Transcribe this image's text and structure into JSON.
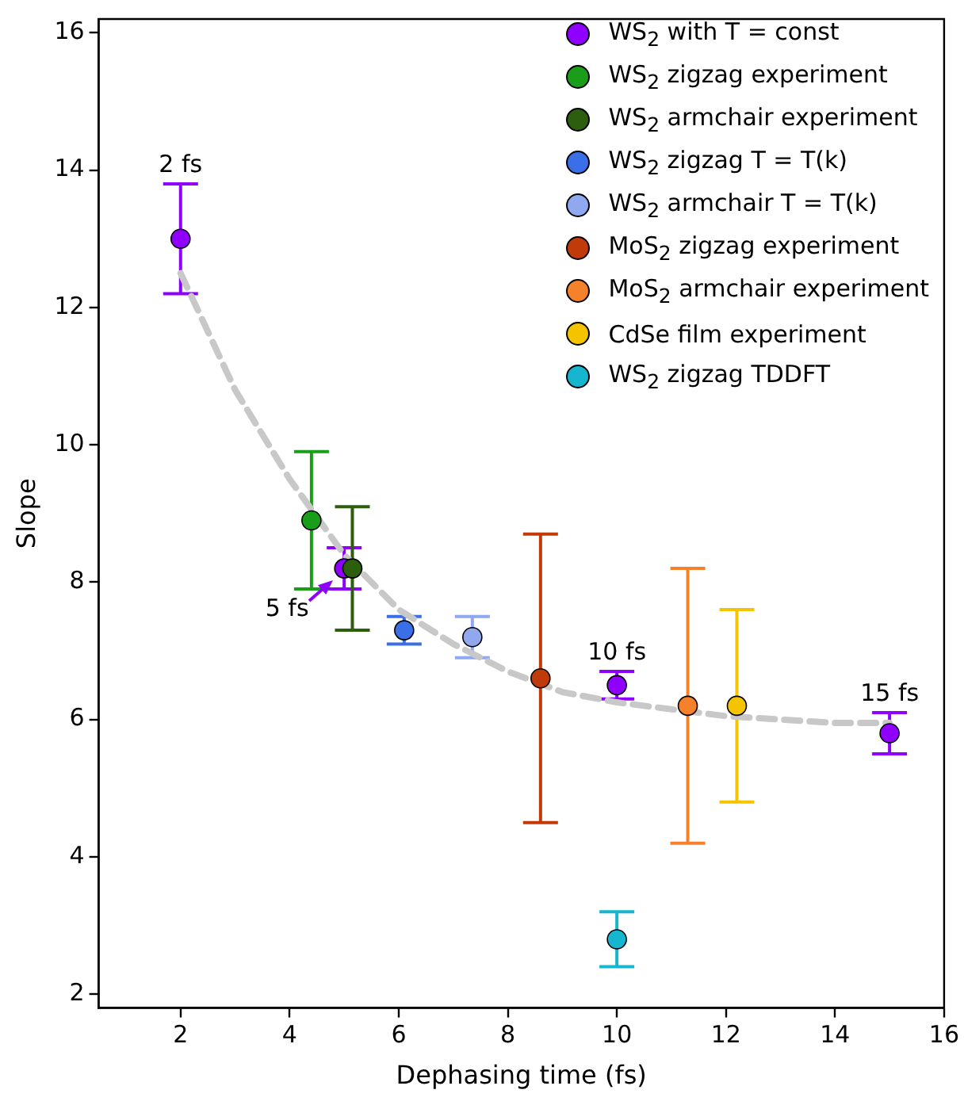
{
  "chart_data": {
    "type": "scatter",
    "xlabel": "Dephasing time (fs)",
    "ylabel": "Slope",
    "xlim": [
      0.5,
      16
    ],
    "ylim": [
      1.8,
      16.2
    ],
    "xticks": [
      2,
      4,
      6,
      8,
      10,
      12,
      14,
      16
    ],
    "yticks": [
      2,
      4,
      6,
      8,
      10,
      12,
      14,
      16
    ],
    "grid": false,
    "legend": "top right",
    "marker": "circle",
    "series": [
      {
        "name": "WS$_{2}$ with T = const",
        "color": "#8f00ff",
        "x": [
          2,
          5,
          10,
          15
        ],
        "values": [
          13,
          8.2,
          6.5,
          5.8
        ],
        "errors": [
          0.8,
          0.3,
          0.2,
          0.3
        ]
      },
      {
        "name": "WS$_{2}$ zigzag experiment",
        "color": "#1a9e1a",
        "x": [
          4.4
        ],
        "values": [
          8.9
        ],
        "errors": [
          1.0
        ]
      },
      {
        "name": "WS$_{2}$ armchair experiment",
        "color": "#2d5e0e",
        "x": [
          5.15
        ],
        "values": [
          8.2
        ],
        "errors": [
          0.9
        ]
      },
      {
        "name": "WS$_{2}$ zigzag T = T(k)",
        "color": "#3b6fe8",
        "x": [
          6.1
        ],
        "values": [
          7.3
        ],
        "errors": [
          0.2
        ]
      },
      {
        "name": "WS$_{2}$ armchair T = T(k)",
        "color": "#8fa8f0",
        "x": [
          7.35
        ],
        "values": [
          7.2
        ],
        "errors": [
          0.3
        ]
      },
      {
        "name": "MoS$_{2}$ zigzag experiment",
        "color": "#c03a0a",
        "x": [
          8.6
        ],
        "values": [
          6.6
        ],
        "errors": [
          2.1
        ]
      },
      {
        "name": "MoS$_{2}$ armchair experiment",
        "color": "#f5812a",
        "x": [
          11.3
        ],
        "values": [
          6.2
        ],
        "errors": [
          2.0
        ]
      },
      {
        "name": "CdSe film experiment",
        "color": "#f5c400",
        "x": [
          12.2
        ],
        "values": [
          6.2
        ],
        "errors": [
          1.4
        ]
      },
      {
        "name": "WS$_{2}$ zigzag TDDFT",
        "color": "#16b5d0",
        "x": [
          10
        ],
        "values": [
          2.8
        ],
        "errors": [
          0.4
        ]
      },
      {
        "type": "line",
        "color": "#c8c8c8",
        "line_style": "dashed",
        "marker": "none",
        "x": [
          2,
          3,
          4,
          5,
          6,
          7,
          8,
          9,
          10,
          11,
          12,
          13,
          14,
          15
        ],
        "values": [
          12.5,
          10.8,
          9.5,
          8.4,
          7.6,
          7.1,
          6.7,
          6.4,
          6.25,
          6.15,
          6.05,
          6.0,
          5.95,
          5.95
        ]
      }
    ],
    "annotations": [
      {
        "text": "2 fs",
        "x": 2,
        "y": 13
      },
      {
        "text": "5 fs",
        "x": 5,
        "y": 8.2
      },
      {
        "text": "10 fs",
        "x": 10,
        "y": 6.5
      },
      {
        "text": "15 fs",
        "x": 15,
        "y": 5.8
      }
    ]
  }
}
